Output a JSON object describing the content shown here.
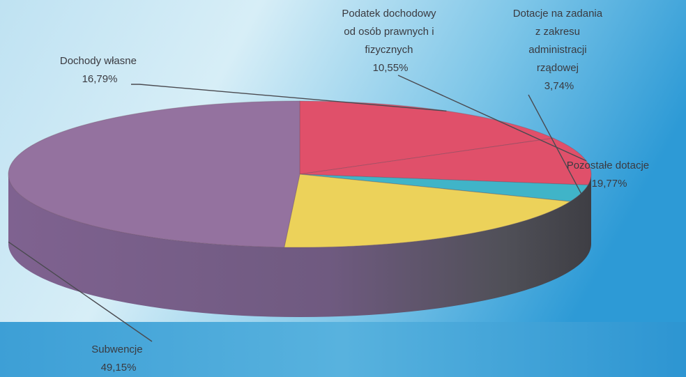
{
  "chart_data": {
    "type": "pie",
    "style": "3d",
    "slices": [
      {
        "label": "Dochody własne",
        "value": 16.79,
        "value_label": "16,79%",
        "color": "#e0506a"
      },
      {
        "label": "Podatek dochodowy od osób prawnych i fizycznych",
        "value": 10.55,
        "value_label": "10,55%",
        "color": "#e0506a"
      },
      {
        "label": "Dotacje na zadania z zakresu administracji rządowej",
        "value": 3.74,
        "value_label": "3,74%",
        "color": "#40b4c8"
      },
      {
        "label": "Pozostałe dotacje",
        "value": 19.77,
        "value_label": "19,77%",
        "color": "#ecd25a"
      },
      {
        "label": "Subwencje",
        "value": 49.15,
        "value_label": "49,15%",
        "color": "#94729f"
      }
    ],
    "labels": {
      "dochody": {
        "lines": [
          "Dochody własne",
          "16,79%"
        ]
      },
      "podatek": {
        "lines": [
          "Podatek dochodowy",
          "od osób prawnych i",
          "fizycznych",
          "10,55%"
        ]
      },
      "dotacje_zad": {
        "lines": [
          "Dotacje na zadania",
          "z zakresu",
          "administracji",
          "rządowej",
          "3,74%"
        ]
      },
      "pozostale": {
        "lines": [
          "Pozostałe dotacje",
          "19,77%"
        ]
      },
      "subwencje": {
        "lines": [
          "Subwencje",
          "49,15%"
        ]
      }
    }
  }
}
